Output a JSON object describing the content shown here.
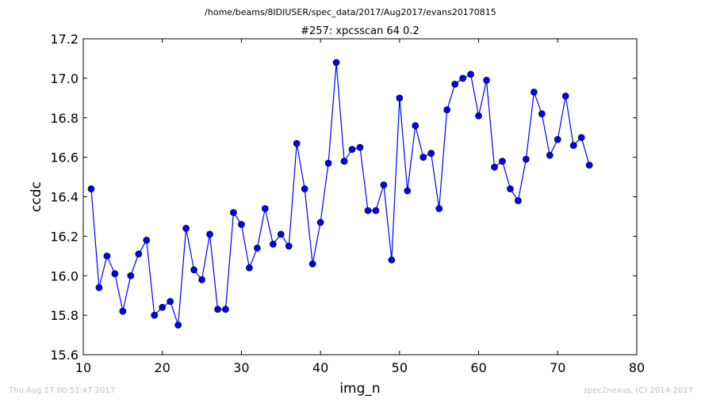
{
  "header": {
    "path": "/home/beams/8IDIUSER/spec_data/2017/Aug2017/evans20170815"
  },
  "footer": {
    "timestamp": "Thu Aug 17 00:51:47 2017",
    "credit": "spec2nexus, (C) 2014-2017"
  },
  "chart_data": {
    "type": "line",
    "title": "#257: xpcsscan 64 0.2",
    "xlabel": "img_n",
    "ylabel": "ccdc",
    "xlim": [
      10,
      80
    ],
    "ylim": [
      15.6,
      17.2
    ],
    "xticks": [
      "10",
      "20",
      "30",
      "40",
      "50",
      "60",
      "70",
      "80"
    ],
    "yticks": [
      "15.6",
      "15.8",
      "16.0",
      "16.2",
      "16.4",
      "16.6",
      "16.8",
      "17.0",
      "17.2"
    ],
    "grid": false,
    "marker": "circle",
    "colors": {
      "line": "#0000ff",
      "marker": "#0000ff"
    },
    "series": [
      {
        "x": [
          11,
          12,
          13,
          14,
          15,
          16,
          17,
          18,
          19,
          20,
          21,
          22,
          23,
          24,
          25,
          26,
          27,
          28,
          29,
          30,
          31,
          32,
          33,
          34,
          35,
          36,
          37,
          38,
          39,
          40,
          41,
          42,
          43,
          44,
          45,
          46,
          47,
          48,
          49,
          50,
          51,
          52,
          53,
          54,
          55,
          56,
          57,
          58,
          59,
          60,
          61,
          62,
          63,
          64,
          65,
          66,
          67,
          68,
          69,
          70,
          71,
          72,
          73,
          74
        ],
        "y": [
          16.44,
          15.94,
          16.1,
          16.01,
          15.82,
          16.0,
          16.11,
          16.18,
          15.8,
          15.84,
          15.87,
          15.75,
          16.24,
          16.03,
          15.98,
          16.21,
          15.83,
          15.83,
          16.32,
          16.26,
          16.04,
          16.14,
          16.34,
          16.16,
          16.21,
          16.15,
          16.67,
          16.44,
          16.06,
          16.27,
          16.57,
          17.08,
          16.58,
          16.64,
          16.65,
          16.33,
          16.33,
          16.46,
          16.08,
          16.9,
          16.43,
          16.76,
          16.6,
          16.62,
          16.34,
          16.84,
          16.97,
          17.0,
          17.02,
          16.81,
          16.99,
          16.55,
          16.58,
          16.44,
          16.38,
          16.59,
          16.93,
          16.82,
          16.61,
          16.69,
          16.91,
          16.66,
          16.7,
          16.56
        ]
      }
    ]
  }
}
